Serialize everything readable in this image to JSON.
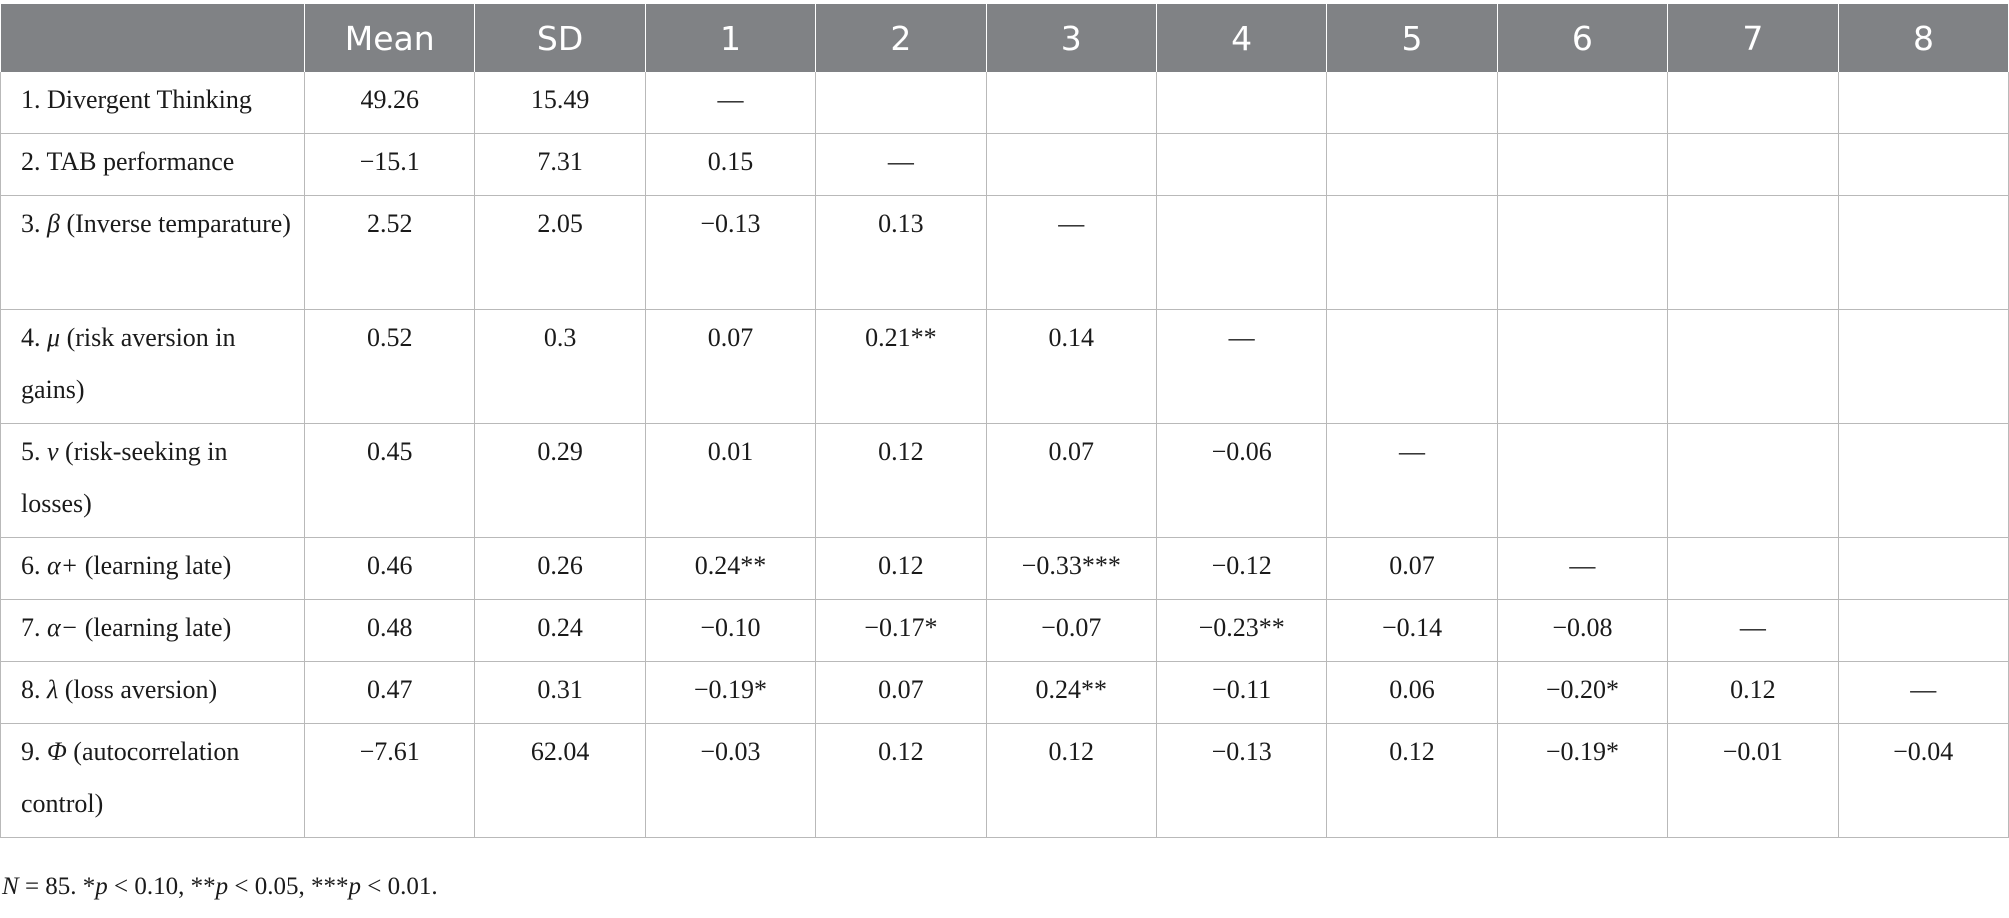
{
  "table": {
    "headers": [
      "",
      "Mean",
      "SD",
      "1",
      "2",
      "3",
      "4",
      "5",
      "6",
      "7",
      "8"
    ],
    "rows": [
      {
        "num": "1.",
        "sym": "",
        "label": "Divergent Thinking",
        "cells": [
          "49.26",
          "15.49",
          "—",
          "",
          "",
          "",
          "",
          "",
          "",
          ""
        ]
      },
      {
        "num": "2.",
        "sym": "",
        "label": "TAB performance",
        "cells": [
          "−15.1",
          "7.31",
          "0.15",
          "—",
          "",
          "",
          "",
          "",
          "",
          ""
        ]
      },
      {
        "num": "3.",
        "sym": "β",
        "label": "(Inverse temparature)",
        "cells": [
          "2.52",
          "2.05",
          "−0.13",
          "0.13",
          "—",
          "",
          "",
          "",
          "",
          ""
        ]
      },
      {
        "num": "4.",
        "sym": "μ",
        "label": "(risk aversion in gains)",
        "cells": [
          "0.52",
          "0.3",
          "0.07",
          "0.21**",
          "0.14",
          "—",
          "",
          "",
          "",
          ""
        ]
      },
      {
        "num": "5.",
        "sym": "ν",
        "label": "(risk-seeking in losses)",
        "cells": [
          "0.45",
          "0.29",
          "0.01",
          "0.12",
          "0.07",
          "−0.06",
          "—",
          "",
          "",
          ""
        ]
      },
      {
        "num": "6.",
        "sym": "α+",
        "label": "(learning late)",
        "cells": [
          "0.46",
          "0.26",
          "0.24**",
          "0.12",
          "−0.33***",
          "−0.12",
          "0.07",
          "—",
          "",
          ""
        ]
      },
      {
        "num": "7.",
        "sym": "α−",
        "label": "(learning late)",
        "cells": [
          "0.48",
          "0.24",
          "−0.10",
          "−0.17*",
          "−0.07",
          "−0.23**",
          "−0.14",
          "−0.08",
          "—",
          ""
        ]
      },
      {
        "num": "8.",
        "sym": "λ",
        "label": "(loss aversion)",
        "cells": [
          "0.47",
          "0.31",
          "−0.19*",
          "0.07",
          "0.24**",
          "−0.11",
          "0.06",
          "−0.20*",
          "0.12",
          "—"
        ]
      },
      {
        "num": "9.",
        "sym": "Φ",
        "label": "(autocorrelation control)",
        "cells": [
          "−7.61",
          "62.04",
          "−0.03",
          "0.12",
          "0.12",
          "−0.13",
          "0.12",
          "−0.19*",
          "−0.01",
          "−0.04"
        ]
      }
    ]
  },
  "note": {
    "n_sym": "N",
    "n_text": " = 85. *",
    "p1": "p",
    "t1": " < 0.10, **",
    "p2": "p",
    "t2": " < 0.05, ***",
    "p3": "p",
    "t3": " < 0.01."
  }
}
